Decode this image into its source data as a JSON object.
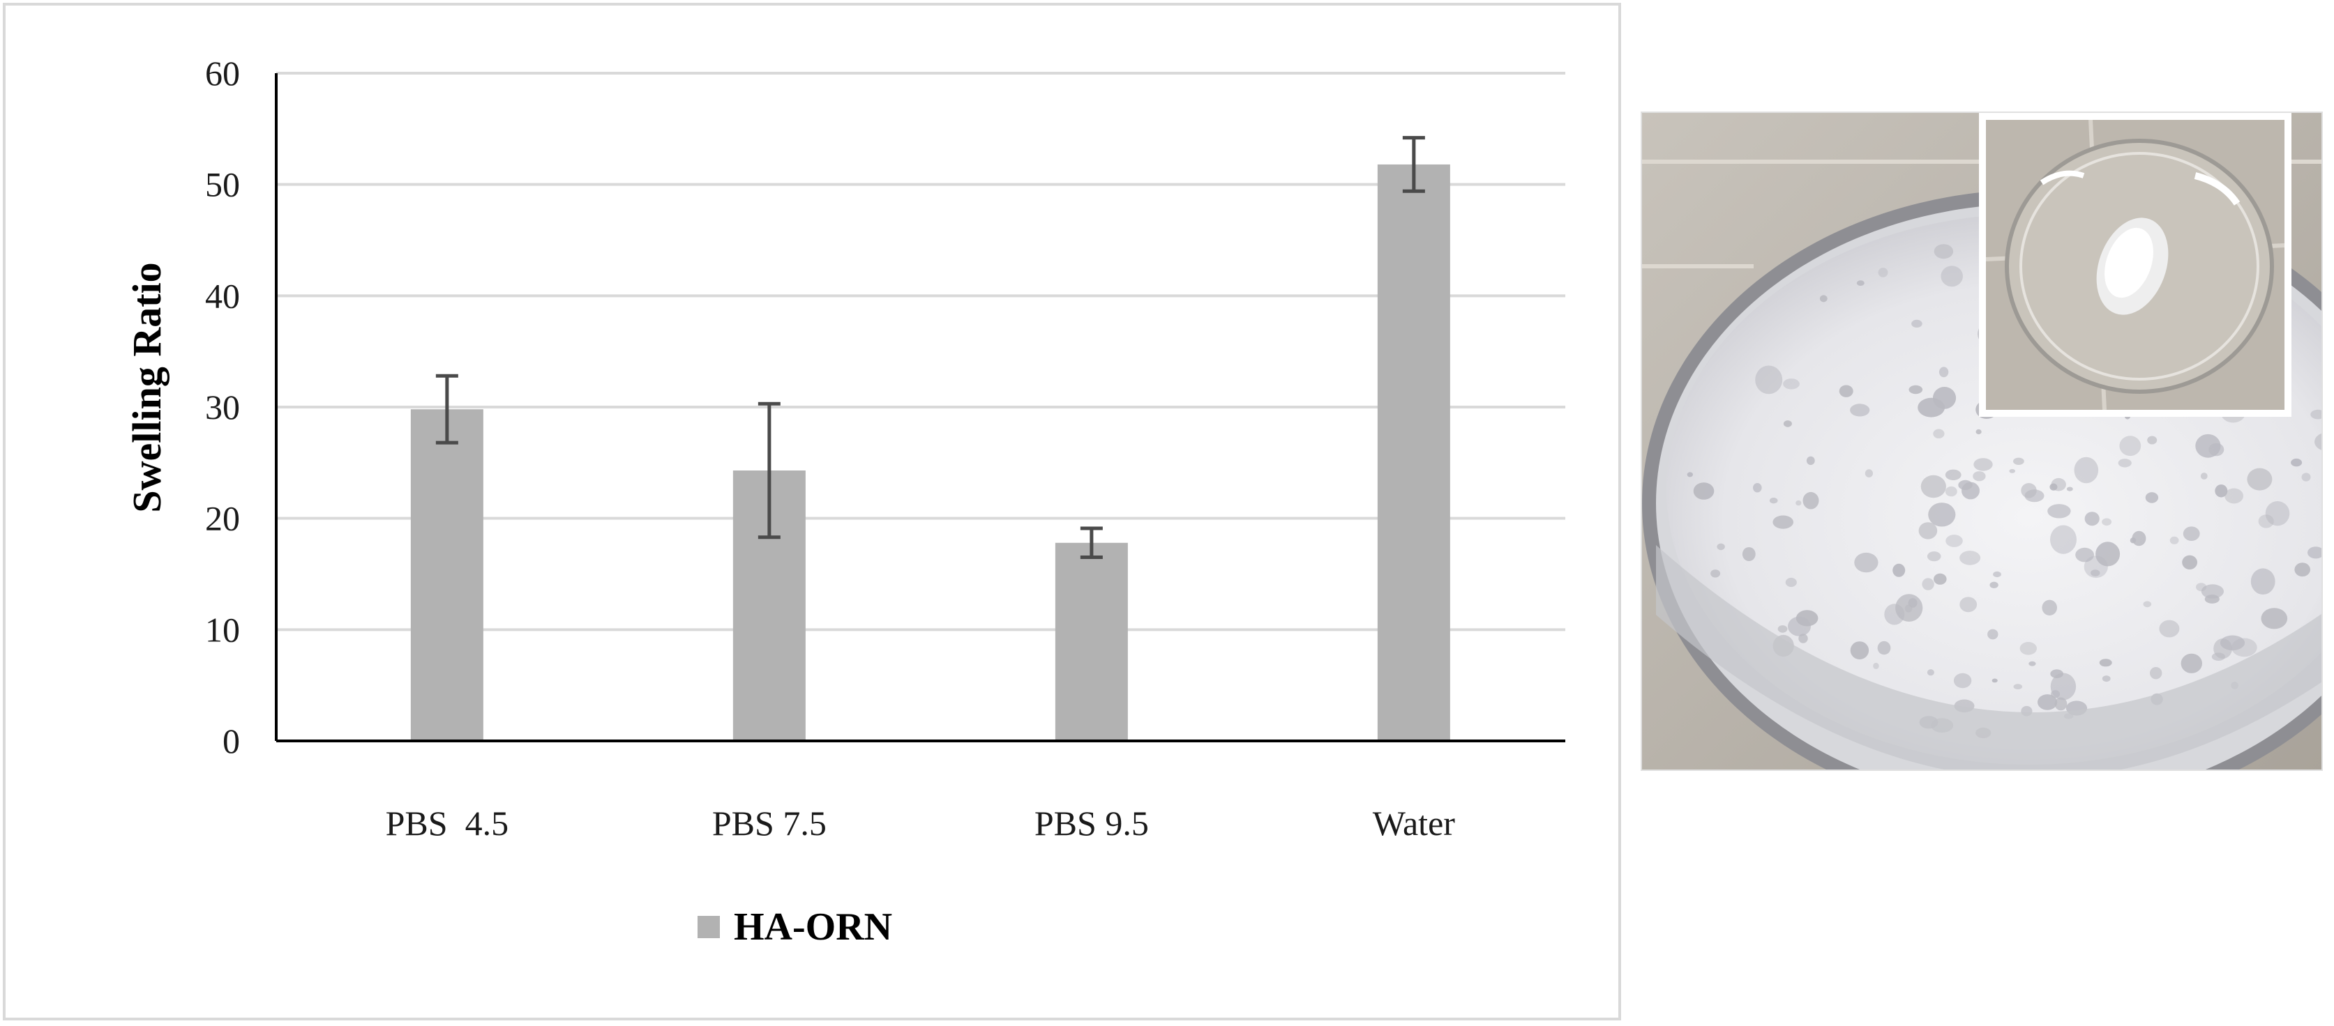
{
  "chart_data": {
    "type": "bar",
    "title": "",
    "xlabel": "",
    "ylabel": "Swelling Ratio",
    "categories": [
      "PBS  4.5",
      "PBS 7.5",
      "PBS 9.5",
      "Water"
    ],
    "series": [
      {
        "name": "HA-ORN",
        "values": [
          29.8,
          24.3,
          17.8,
          51.8
        ],
        "error": [
          3.0,
          6.0,
          1.3,
          2.4
        ],
        "color": "#b2b2b2"
      }
    ],
    "ylim": [
      0,
      60
    ],
    "yticks": [
      0,
      10,
      20,
      30,
      40,
      50,
      60
    ],
    "grid": true,
    "legend": "bottom-center",
    "gridline_color": "#d9d9d9",
    "errorbar_color": "#4a4a4a"
  },
  "photo": {
    "description_icon": "petri-dish-photo",
    "inset_icon": "dried-sample-in-petri-dish-photo"
  }
}
